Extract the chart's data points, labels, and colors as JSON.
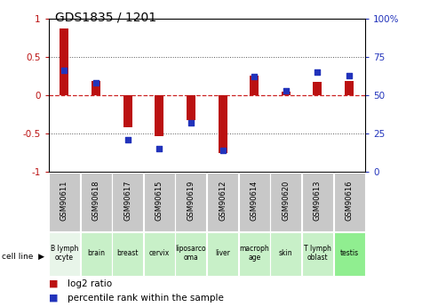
{
  "title": "GDS1835 / 1201",
  "samples": [
    "GSM90611",
    "GSM90618",
    "GSM90617",
    "GSM90615",
    "GSM90619",
    "GSM90612",
    "GSM90614",
    "GSM90620",
    "GSM90613",
    "GSM90616"
  ],
  "cell_lines": [
    "B lymph\nocyte",
    "brain",
    "breast",
    "cervix",
    "liposarco\noma",
    "liver",
    "macroph\nage",
    "skin",
    "T lymph\noblast",
    "testis"
  ],
  "cell_line_colors": [
    "#e8f5e9",
    "#c8f0c8",
    "#c8f0c8",
    "#c8f0c8",
    "#c8f0c8",
    "#c8f0c8",
    "#c8f0c8",
    "#c8f0c8",
    "#c8f0c8",
    "#90ee90"
  ],
  "log2_ratio": [
    0.87,
    0.18,
    -0.42,
    -0.53,
    -0.32,
    -0.75,
    0.26,
    0.05,
    0.17,
    0.18
  ],
  "percentile_rank": [
    66,
    58,
    21,
    15,
    32,
    14,
    62,
    53,
    65,
    63
  ],
  "ylim_left": [
    -1,
    1
  ],
  "ylim_right": [
    0,
    100
  ],
  "bar_color": "#bb1111",
  "dot_color": "#2233bb",
  "zero_line_color": "#cc2222",
  "grid_color": "#555555",
  "bg_color": "#ffffff",
  "left_tick_labels": [
    "-1",
    "-0.5",
    "0",
    "0.5",
    "1"
  ],
  "left_tick_vals": [
    -1,
    -0.5,
    0,
    0.5,
    1
  ],
  "right_tick_labels": [
    "0",
    "25",
    "50",
    "75",
    "100%"
  ],
  "right_tick_vals": [
    0,
    25,
    50,
    75,
    100
  ],
  "sample_bg_color": "#c8c8c8",
  "cell_line_bg_normal": "#aae8aa",
  "cell_line_bg_light": "#dddddd"
}
